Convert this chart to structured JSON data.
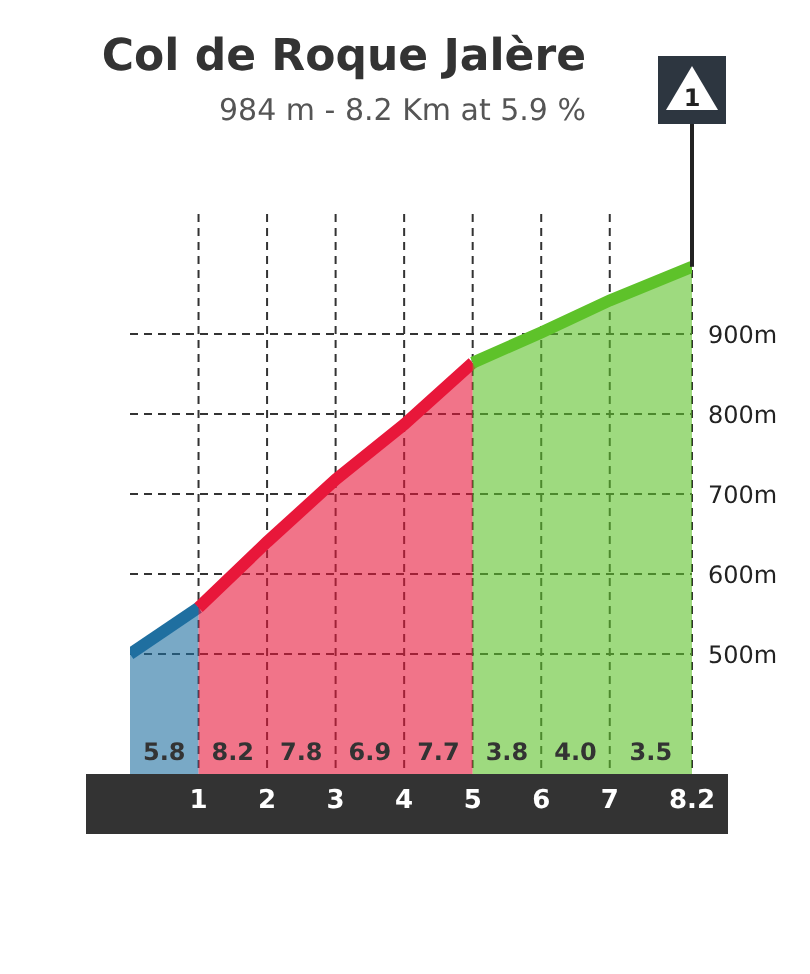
{
  "chart_data": {
    "type": "area",
    "title": "Col de Roque Jalère",
    "subtitle": "984 m - 8.2 Km at 5.9 %",
    "xlim": [
      0,
      8.2
    ],
    "xticks": [
      1,
      2,
      3,
      4,
      5,
      6,
      7,
      8.2
    ],
    "ylim": [
      350,
      1050
    ],
    "yticks": [
      {
        "value": 500,
        "label": "500m"
      },
      {
        "value": 600,
        "label": "600m"
      },
      {
        "value": 700,
        "label": "700m"
      },
      {
        "value": 800,
        "label": "800m"
      },
      {
        "value": 900,
        "label": "900m"
      }
    ],
    "grid": true,
    "series": [
      {
        "color": "#1f6fa0",
        "x": [
          0,
          1
        ],
        "values": [
          500,
          558
        ]
      },
      {
        "color": "#e8173a",
        "x": [
          1,
          2,
          3,
          4,
          5
        ],
        "values": [
          558,
          640,
          718,
          787,
          864
        ]
      },
      {
        "color": "#5ec22a",
        "x": [
          5,
          6,
          7,
          8.2
        ],
        "values": [
          864,
          902,
          942,
          984
        ]
      }
    ],
    "annotations": [
      "5.8",
      "8.2",
      "7.8",
      "6.9",
      "7.7",
      "3.8",
      "4.0",
      "3.5",
      {
        "text": "1",
        "x": 8.2,
        "y": 984
      }
    ]
  }
}
